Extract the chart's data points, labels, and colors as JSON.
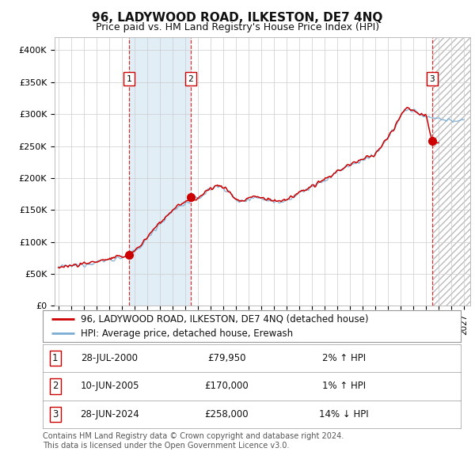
{
  "title": "96, LADYWOOD ROAD, ILKESTON, DE7 4NQ",
  "subtitle": "Price paid vs. HM Land Registry's House Price Index (HPI)",
  "ylim": [
    0,
    420000
  ],
  "yticks": [
    0,
    50000,
    100000,
    150000,
    200000,
    250000,
    300000,
    350000,
    400000
  ],
  "ytick_labels": [
    "£0",
    "£50K",
    "£100K",
    "£150K",
    "£200K",
    "£250K",
    "£300K",
    "£350K",
    "£400K"
  ],
  "xlim_start": 1994.7,
  "xlim_end": 2027.5,
  "sale_dates": [
    2000.58,
    2005.44,
    2024.49
  ],
  "sale_prices": [
    79950,
    170000,
    258000
  ],
  "sale_labels": [
    "1",
    "2",
    "3"
  ],
  "hpi_color": "#7aadd4",
  "price_color": "#cc0000",
  "shade_color": "#d0e4f0",
  "hatch_color": "#bbbbbb",
  "background_color": "#ffffff",
  "grid_color": "#cccccc",
  "legend_entries": [
    "96, LADYWOOD ROAD, ILKESTON, DE7 4NQ (detached house)",
    "HPI: Average price, detached house, Erewash"
  ],
  "table_rows": [
    [
      "1",
      "28-JUL-2000",
      "£79,950",
      "2% ↑ HPI"
    ],
    [
      "2",
      "10-JUN-2005",
      "£170,000",
      "1% ↑ HPI"
    ],
    [
      "3",
      "28-JUN-2024",
      "£258,000",
      "14% ↓ HPI"
    ]
  ],
  "footer": "Contains HM Land Registry data © Crown copyright and database right 2024.\nThis data is licensed under the Open Government Licence v3.0.",
  "title_fontsize": 11,
  "subtitle_fontsize": 9,
  "tick_fontsize": 8,
  "legend_fontsize": 8.5,
  "table_fontsize": 8.5
}
